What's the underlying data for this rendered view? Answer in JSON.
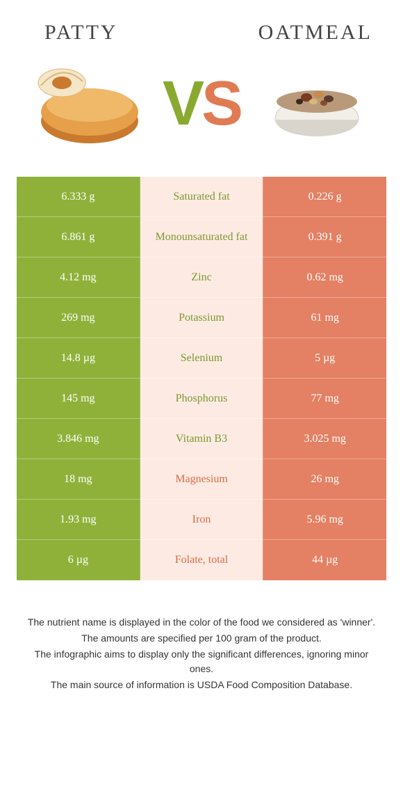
{
  "header": {
    "left_title": "Patty",
    "right_title": "Oatmeal",
    "vs_v": "V",
    "vs_s": "S"
  },
  "colors": {
    "green": "#8fb13a",
    "orange": "#e48063",
    "mid_bg": "#fdebe3",
    "green_text": "#7a9830",
    "orange_text": "#d96c45"
  },
  "rows": [
    {
      "left": "6.333 g",
      "label": "Saturated fat",
      "right": "0.226 g",
      "winner": "green"
    },
    {
      "left": "6.861 g",
      "label": "Monounsaturated fat",
      "right": "0.391 g",
      "winner": "green"
    },
    {
      "left": "4.12 mg",
      "label": "Zinc",
      "right": "0.62 mg",
      "winner": "green"
    },
    {
      "left": "269 mg",
      "label": "Potassium",
      "right": "61 mg",
      "winner": "green"
    },
    {
      "left": "14.8 µg",
      "label": "Selenium",
      "right": "5 µg",
      "winner": "green"
    },
    {
      "left": "145 mg",
      "label": "Phosphorus",
      "right": "77 mg",
      "winner": "green"
    },
    {
      "left": "3.846 mg",
      "label": "Vitamin B3",
      "right": "3.025 mg",
      "winner": "green"
    },
    {
      "left": "18 mg",
      "label": "Magnesium",
      "right": "26 mg",
      "winner": "orange"
    },
    {
      "left": "1.93 mg",
      "label": "Iron",
      "right": "5.96 mg",
      "winner": "orange"
    },
    {
      "left": "6 µg",
      "label": "Folate, total",
      "right": "44 µg",
      "winner": "orange"
    }
  ],
  "footnotes": [
    "The nutrient name is displayed in the color of the food we considered as 'winner'.",
    "The amounts are specified per 100 gram of the product.",
    "The infographic aims to display only the significant differences, ignoring minor ones.",
    "The main source of information is USDA Food Composition Database."
  ]
}
